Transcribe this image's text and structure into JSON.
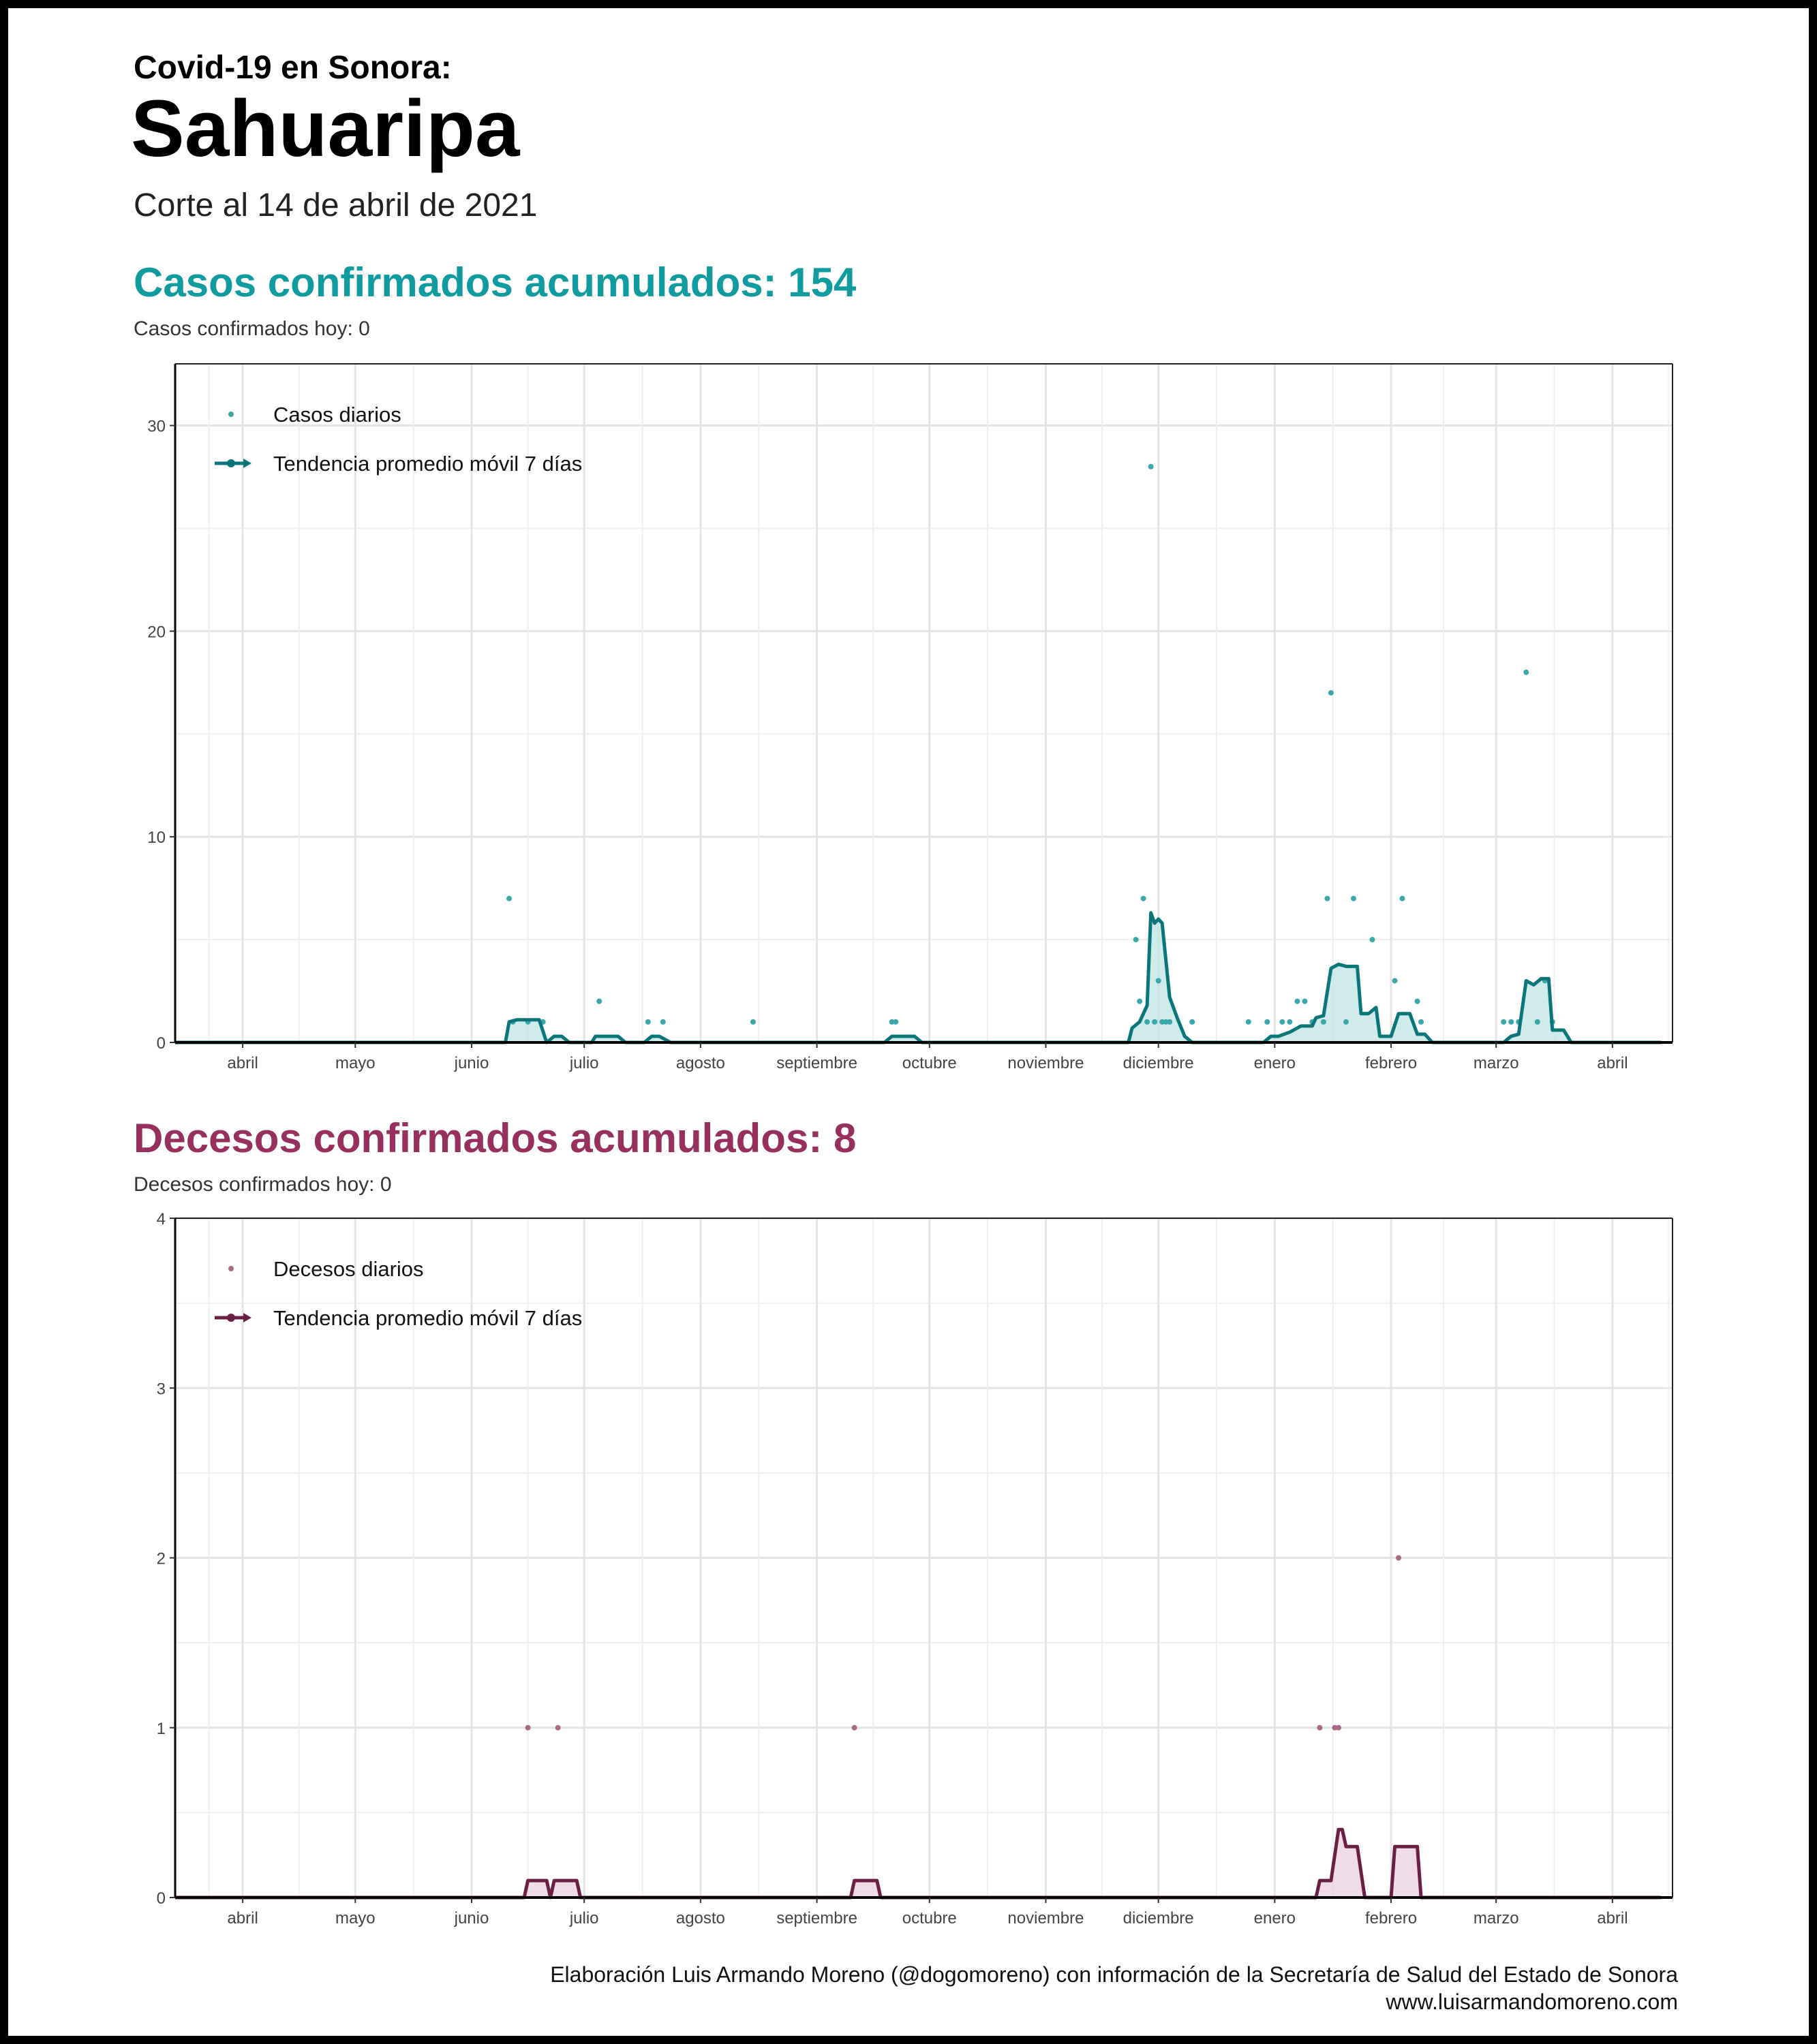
{
  "header": {
    "pre_title": "Covid-19 en Sonora:",
    "title": "Sahuaripa",
    "date": "Corte al 14 de abril de 2021"
  },
  "cases": {
    "heading": "Casos confirmados acumulados: 154",
    "today": "Casos confirmados hoy: 0"
  },
  "deaths": {
    "heading": "Decesos confirmados acumulados: 8",
    "today": "Decesos confirmados hoy: 0"
  },
  "footer": {
    "credit": "Elaboración Luis Armando Moreno (@dogomoreno) con información de la Secretaría de Salud del Estado de Sonora",
    "site": "www.luisarmandomoreno.com"
  },
  "colors": {
    "cases_line": "#0b767a",
    "cases_point": "#3aa7aa",
    "cases_fill": "#bfe4e4",
    "deaths_line": "#6c1f45",
    "deaths_point": "#a86a86",
    "deaths_fill": "#ead0dd"
  },
  "chart_data": [
    {
      "type": "line",
      "xlim": [
        "2020-03-14",
        "2021-04-17"
      ],
      "ylim": [
        0,
        33
      ],
      "yticks": [
        0,
        10,
        20,
        30
      ],
      "grid": true,
      "legend_position": "top-left",
      "xticks": [
        {
          "date": "2020-04-01",
          "label": "abril"
        },
        {
          "date": "2020-05-01",
          "label": "mayo"
        },
        {
          "date": "2020-06-01",
          "label": "junio"
        },
        {
          "date": "2020-07-01",
          "label": "julio"
        },
        {
          "date": "2020-08-01",
          "label": "agosto"
        },
        {
          "date": "2020-09-01",
          "label": "septiembre"
        },
        {
          "date": "2020-10-01",
          "label": "octubre"
        },
        {
          "date": "2020-11-01",
          "label": "noviembre"
        },
        {
          "date": "2020-12-01",
          "label": "diciembre"
        },
        {
          "date": "2021-01-01",
          "label": "enero"
        },
        {
          "date": "2021-02-01",
          "label": "febrero"
        },
        {
          "date": "2021-03-01",
          "label": "marzo"
        },
        {
          "date": "2021-04-01",
          "label": "abril"
        }
      ],
      "series": [
        {
          "name": "Casos diarios",
          "kind": "points",
          "points": [
            [
              "2020-06-11",
              7
            ],
            [
              "2020-06-12",
              1
            ],
            [
              "2020-06-16",
              1
            ],
            [
              "2020-06-20",
              1
            ],
            [
              "2020-07-05",
              2
            ],
            [
              "2020-07-18",
              1
            ],
            [
              "2020-07-22",
              1
            ],
            [
              "2020-08-15",
              1
            ],
            [
              "2020-09-21",
              1
            ],
            [
              "2020-09-22",
              1
            ],
            [
              "2020-11-25",
              5
            ],
            [
              "2020-11-26",
              2
            ],
            [
              "2020-11-27",
              7
            ],
            [
              "2020-11-28",
              1
            ],
            [
              "2020-11-29",
              28
            ],
            [
              "2020-11-30",
              1
            ],
            [
              "2020-12-01",
              3
            ],
            [
              "2020-12-02",
              1
            ],
            [
              "2020-12-03",
              1
            ],
            [
              "2020-12-04",
              1
            ],
            [
              "2020-12-10",
              1
            ],
            [
              "2020-12-25",
              1
            ],
            [
              "2020-12-30",
              1
            ],
            [
              "2021-01-03",
              1
            ],
            [
              "2021-01-05",
              1
            ],
            [
              "2021-01-07",
              2
            ],
            [
              "2021-01-09",
              2
            ],
            [
              "2021-01-11",
              1
            ],
            [
              "2021-01-14",
              1
            ],
            [
              "2021-01-15",
              7
            ],
            [
              "2021-01-16",
              17
            ],
            [
              "2021-01-20",
              1
            ],
            [
              "2021-01-22",
              7
            ],
            [
              "2021-01-27",
              5
            ],
            [
              "2021-02-02",
              3
            ],
            [
              "2021-02-04",
              7
            ],
            [
              "2021-02-08",
              2
            ],
            [
              "2021-02-09",
              1
            ],
            [
              "2021-03-03",
              1
            ],
            [
              "2021-03-05",
              1
            ],
            [
              "2021-03-07",
              1
            ],
            [
              "2021-03-09",
              18
            ],
            [
              "2021-03-12",
              1
            ],
            [
              "2021-03-14",
              3
            ],
            [
              "2021-03-16",
              1
            ]
          ]
        },
        {
          "name": "Tendencia promedio móvil 7 días",
          "kind": "line",
          "points": [
            [
              "2020-03-14",
              0
            ],
            [
              "2020-06-10",
              0
            ],
            [
              "2020-06-11",
              1
            ],
            [
              "2020-06-13",
              1.1
            ],
            [
              "2020-06-16",
              1.1
            ],
            [
              "2020-06-19",
              1.1
            ],
            [
              "2020-06-21",
              0
            ],
            [
              "2020-06-23",
              0.3
            ],
            [
              "2020-06-25",
              0.3
            ],
            [
              "2020-06-27",
              0
            ],
            [
              "2020-07-03",
              0
            ],
            [
              "2020-07-04",
              0.3
            ],
            [
              "2020-07-10",
              0.3
            ],
            [
              "2020-07-12",
              0
            ],
            [
              "2020-07-17",
              0
            ],
            [
              "2020-07-19",
              0.3
            ],
            [
              "2020-07-21",
              0.3
            ],
            [
              "2020-07-24",
              0
            ],
            [
              "2020-09-19",
              0
            ],
            [
              "2020-09-21",
              0.3
            ],
            [
              "2020-09-27",
              0.3
            ],
            [
              "2020-09-29",
              0
            ],
            [
              "2020-11-23",
              0
            ],
            [
              "2020-11-24",
              0.7
            ],
            [
              "2020-11-26",
              1
            ],
            [
              "2020-11-28",
              1.8
            ],
            [
              "2020-11-29",
              6.3
            ],
            [
              "2020-11-30",
              5.8
            ],
            [
              "2020-12-01",
              6
            ],
            [
              "2020-12-02",
              5.8
            ],
            [
              "2020-12-04",
              2.2
            ],
            [
              "2020-12-06",
              1.2
            ],
            [
              "2020-12-08",
              0.3
            ],
            [
              "2020-12-10",
              0
            ],
            [
              "2020-12-29",
              0
            ],
            [
              "2020-12-31",
              0.3
            ],
            [
              "2021-01-02",
              0.3
            ],
            [
              "2021-01-05",
              0.5
            ],
            [
              "2021-01-08",
              0.8
            ],
            [
              "2021-01-11",
              0.8
            ],
            [
              "2021-01-12",
              1.2
            ],
            [
              "2021-01-14",
              1.3
            ],
            [
              "2021-01-16",
              3.6
            ],
            [
              "2021-01-18",
              3.8
            ],
            [
              "2021-01-20",
              3.7
            ],
            [
              "2021-01-23",
              3.7
            ],
            [
              "2021-01-24",
              1.4
            ],
            [
              "2021-01-26",
              1.4
            ],
            [
              "2021-01-28",
              1.7
            ],
            [
              "2021-01-29",
              0.3
            ],
            [
              "2021-02-01",
              0.3
            ],
            [
              "2021-02-03",
              1.4
            ],
            [
              "2021-02-06",
              1.4
            ],
            [
              "2021-02-08",
              0.4
            ],
            [
              "2021-02-10",
              0.4
            ],
            [
              "2021-02-12",
              0
            ],
            [
              "2021-03-03",
              0
            ],
            [
              "2021-03-05",
              0.3
            ],
            [
              "2021-03-07",
              0.4
            ],
            [
              "2021-03-09",
              3
            ],
            [
              "2021-03-11",
              2.8
            ],
            [
              "2021-03-13",
              3.1
            ],
            [
              "2021-03-15",
              3.1
            ],
            [
              "2021-03-16",
              0.6
            ],
            [
              "2021-03-19",
              0.6
            ],
            [
              "2021-03-21",
              0
            ],
            [
              "2021-04-14",
              0
            ]
          ]
        }
      ]
    },
    {
      "type": "line",
      "xlim": [
        "2020-03-14",
        "2021-04-17"
      ],
      "ylim": [
        0,
        4
      ],
      "yticks": [
        0,
        1,
        2,
        3,
        4
      ],
      "grid": true,
      "legend_position": "top-left",
      "xticks": [
        {
          "date": "2020-04-01",
          "label": "abril"
        },
        {
          "date": "2020-05-01",
          "label": "mayo"
        },
        {
          "date": "2020-06-01",
          "label": "junio"
        },
        {
          "date": "2020-07-01",
          "label": "julio"
        },
        {
          "date": "2020-08-01",
          "label": "agosto"
        },
        {
          "date": "2020-09-01",
          "label": "septiembre"
        },
        {
          "date": "2020-10-01",
          "label": "octubre"
        },
        {
          "date": "2020-11-01",
          "label": "noviembre"
        },
        {
          "date": "2020-12-01",
          "label": "diciembre"
        },
        {
          "date": "2021-01-01",
          "label": "enero"
        },
        {
          "date": "2021-02-01",
          "label": "febrero"
        },
        {
          "date": "2021-03-01",
          "label": "marzo"
        },
        {
          "date": "2021-04-01",
          "label": "abril"
        }
      ],
      "series": [
        {
          "name": "Decesos diarios",
          "kind": "points",
          "points": [
            [
              "2020-06-16",
              1
            ],
            [
              "2020-06-24",
              1
            ],
            [
              "2020-09-11",
              1
            ],
            [
              "2021-01-13",
              1
            ],
            [
              "2021-01-17",
              1
            ],
            [
              "2021-01-18",
              1
            ],
            [
              "2021-02-03",
              2
            ]
          ]
        },
        {
          "name": "Tendencia promedio móvil 7 días",
          "kind": "line",
          "points": [
            [
              "2020-03-14",
              0
            ],
            [
              "2020-06-15",
              0
            ],
            [
              "2020-06-16",
              0.1
            ],
            [
              "2020-06-21",
              0.1
            ],
            [
              "2020-06-22",
              0
            ],
            [
              "2020-06-23",
              0.1
            ],
            [
              "2020-06-29",
              0.1
            ],
            [
              "2020-06-30",
              0
            ],
            [
              "2020-09-10",
              0
            ],
            [
              "2020-09-11",
              0.1
            ],
            [
              "2020-09-17",
              0.1
            ],
            [
              "2020-09-18",
              0
            ],
            [
              "2021-01-12",
              0
            ],
            [
              "2021-01-13",
              0.1
            ],
            [
              "2021-01-16",
              0.1
            ],
            [
              "2021-01-18",
              0.4
            ],
            [
              "2021-01-19",
              0.4
            ],
            [
              "2021-01-20",
              0.3
            ],
            [
              "2021-01-23",
              0.3
            ],
            [
              "2021-01-25",
              0
            ],
            [
              "2021-02-01",
              0
            ],
            [
              "2021-02-02",
              0.3
            ],
            [
              "2021-02-08",
              0.3
            ],
            [
              "2021-02-09",
              0
            ],
            [
              "2021-04-14",
              0
            ]
          ]
        }
      ]
    }
  ]
}
